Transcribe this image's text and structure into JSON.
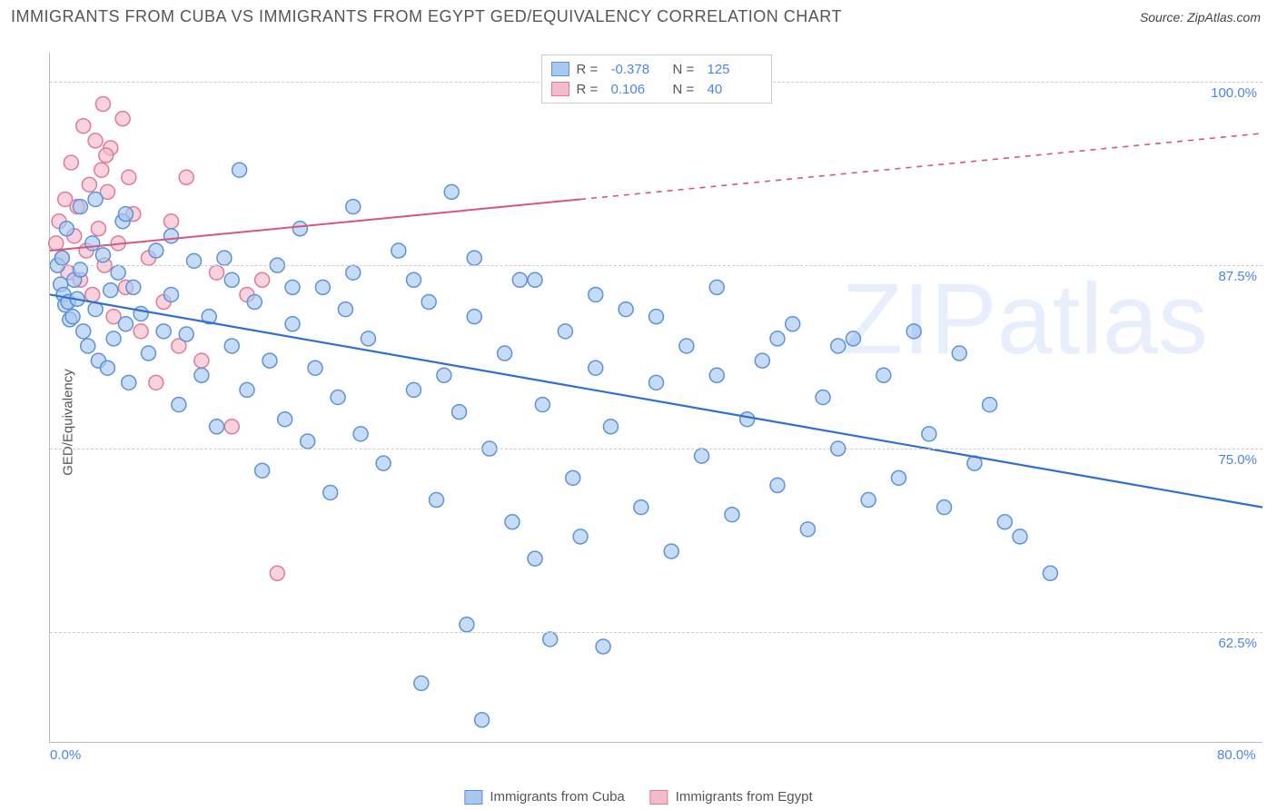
{
  "header": {
    "title": "IMMIGRANTS FROM CUBA VS IMMIGRANTS FROM EGYPT GED/EQUIVALENCY CORRELATION CHART",
    "source": "Source: ZipAtlas.com"
  },
  "chart": {
    "type": "scatter",
    "y_axis_label": "GED/Equivalency",
    "watermark": "ZIPatlas",
    "background_color": "#ffffff",
    "grid_color": "#cccccc",
    "axis_color": "#bbbbbb",
    "text_color": "#555555",
    "value_color": "#4a86e8",
    "xlim": [
      0,
      80
    ],
    "ylim": [
      55,
      102
    ],
    "x_ticks": [
      {
        "v": 0,
        "label": "0.0%"
      },
      {
        "v": 80,
        "label": "80.0%"
      }
    ],
    "y_ticks": [
      {
        "v": 62.5,
        "label": "62.5%"
      },
      {
        "v": 75.0,
        "label": "75.0%"
      },
      {
        "v": 87.5,
        "label": "87.5%"
      },
      {
        "v": 100.0,
        "label": "100.0%"
      }
    ],
    "series": [
      {
        "name": "Immigrants from Cuba",
        "marker_fill": "#a8c8f0",
        "marker_stroke": "#5d93d6",
        "marker_radius": 8,
        "line_color": "#2f6fd0",
        "line_width": 2.2,
        "R": "-0.378",
        "N": "125",
        "trend": {
          "x1": 0,
          "y1": 85.5,
          "x2": 80,
          "y2": 71.0,
          "solid_until": 80
        },
        "points": [
          [
            0.5,
            87.5
          ],
          [
            0.7,
            86.2
          ],
          [
            0.8,
            88.0
          ],
          [
            0.9,
            85.5
          ],
          [
            1.0,
            84.8
          ],
          [
            1.1,
            90.0
          ],
          [
            1.2,
            85.0
          ],
          [
            1.3,
            83.8
          ],
          [
            1.5,
            84.0
          ],
          [
            1.6,
            86.5
          ],
          [
            1.8,
            85.2
          ],
          [
            2.0,
            87.2
          ],
          [
            2.2,
            83.0
          ],
          [
            2.5,
            82.0
          ],
          [
            2.8,
            89.0
          ],
          [
            3.0,
            84.5
          ],
          [
            3.2,
            81.0
          ],
          [
            3.5,
            88.2
          ],
          [
            3.8,
            80.5
          ],
          [
            4.0,
            85.8
          ],
          [
            4.2,
            82.5
          ],
          [
            4.5,
            87.0
          ],
          [
            4.8,
            90.5
          ],
          [
            5.0,
            83.5
          ],
          [
            5.2,
            79.5
          ],
          [
            5.5,
            86.0
          ],
          [
            6.0,
            84.2
          ],
          [
            6.5,
            81.5
          ],
          [
            7.0,
            88.5
          ],
          [
            7.5,
            83.0
          ],
          [
            8.0,
            85.5
          ],
          [
            8.5,
            78.0
          ],
          [
            9.0,
            82.8
          ],
          [
            9.5,
            87.8
          ],
          [
            10.0,
            80.0
          ],
          [
            10.5,
            84.0
          ],
          [
            11.0,
            76.5
          ],
          [
            11.5,
            88.0
          ],
          [
            12.0,
            82.0
          ],
          [
            12.5,
            94.0
          ],
          [
            13.0,
            79.0
          ],
          [
            13.5,
            85.0
          ],
          [
            14.0,
            73.5
          ],
          [
            14.5,
            81.0
          ],
          [
            15.0,
            87.5
          ],
          [
            15.5,
            77.0
          ],
          [
            16.0,
            83.5
          ],
          [
            16.5,
            90.0
          ],
          [
            17.0,
            75.5
          ],
          [
            17.5,
            80.5
          ],
          [
            18.0,
            86.0
          ],
          [
            18.5,
            72.0
          ],
          [
            19.0,
            78.5
          ],
          [
            19.5,
            84.5
          ],
          [
            20.0,
            91.5
          ],
          [
            20.5,
            76.0
          ],
          [
            21.0,
            82.5
          ],
          [
            22.0,
            74.0
          ],
          [
            23.0,
            88.5
          ],
          [
            24.0,
            79.0
          ],
          [
            24.5,
            59.0
          ],
          [
            25.0,
            85.0
          ],
          [
            25.5,
            71.5
          ],
          [
            26.0,
            80.0
          ],
          [
            26.5,
            92.5
          ],
          [
            27.0,
            77.5
          ],
          [
            27.5,
            63.0
          ],
          [
            28.0,
            84.0
          ],
          [
            28.5,
            56.5
          ],
          [
            29.0,
            75.0
          ],
          [
            30.0,
            81.5
          ],
          [
            30.5,
            70.0
          ],
          [
            31.0,
            86.5
          ],
          [
            32.0,
            67.5
          ],
          [
            32.5,
            78.0
          ],
          [
            33.0,
            62.0
          ],
          [
            34.0,
            83.0
          ],
          [
            34.5,
            73.0
          ],
          [
            35.0,
            69.0
          ],
          [
            36.0,
            80.5
          ],
          [
            36.5,
            61.5
          ],
          [
            37.0,
            76.5
          ],
          [
            38.0,
            84.5
          ],
          [
            39.0,
            71.0
          ],
          [
            40.0,
            79.5
          ],
          [
            41.0,
            68.0
          ],
          [
            42.0,
            82.0
          ],
          [
            43.0,
            74.5
          ],
          [
            44.0,
            86.0
          ],
          [
            45.0,
            70.5
          ],
          [
            46.0,
            77.0
          ],
          [
            47.0,
            81.0
          ],
          [
            48.0,
            72.5
          ],
          [
            49.0,
            83.5
          ],
          [
            50.0,
            69.5
          ],
          [
            51.0,
            78.5
          ],
          [
            52.0,
            75.0
          ],
          [
            53.0,
            82.5
          ],
          [
            54.0,
            71.5
          ],
          [
            55.0,
            80.0
          ],
          [
            56.0,
            73.0
          ],
          [
            57.0,
            83.0
          ],
          [
            58.0,
            76.0
          ],
          [
            59.0,
            71.0
          ],
          [
            60.0,
            81.5
          ],
          [
            61.0,
            74.0
          ],
          [
            62.0,
            78.0
          ],
          [
            63.0,
            70.0
          ],
          [
            64.0,
            69.0
          ],
          [
            66.0,
            66.5
          ],
          [
            52.0,
            82.0
          ],
          [
            48.0,
            82.5
          ],
          [
            44.0,
            80.0
          ],
          [
            40.0,
            84.0
          ],
          [
            36.0,
            85.5
          ],
          [
            32.0,
            86.5
          ],
          [
            28.0,
            88.0
          ],
          [
            24.0,
            86.5
          ],
          [
            20.0,
            87.0
          ],
          [
            16.0,
            86.0
          ],
          [
            12.0,
            86.5
          ],
          [
            8.0,
            89.5
          ],
          [
            5.0,
            91.0
          ],
          [
            3.0,
            92.0
          ],
          [
            2.0,
            91.5
          ]
        ]
      },
      {
        "name": "Immigrants from Egypt",
        "marker_fill": "#f4bccb",
        "marker_stroke": "#e17a98",
        "marker_radius": 8,
        "line_color": "#d9567a",
        "line_width": 2.0,
        "R": "0.106",
        "N": "40",
        "trend": {
          "x1": 0,
          "y1": 88.5,
          "x2": 80,
          "y2": 96.5,
          "solid_until": 35
        },
        "points": [
          [
            0.4,
            89.0
          ],
          [
            0.6,
            90.5
          ],
          [
            0.8,
            88.0
          ],
          [
            1.0,
            92.0
          ],
          [
            1.2,
            87.0
          ],
          [
            1.4,
            94.5
          ],
          [
            1.6,
            89.5
          ],
          [
            1.8,
            91.5
          ],
          [
            2.0,
            86.5
          ],
          [
            2.2,
            97.0
          ],
          [
            2.4,
            88.5
          ],
          [
            2.6,
            93.0
          ],
          [
            2.8,
            85.5
          ],
          [
            3.0,
            96.0
          ],
          [
            3.2,
            90.0
          ],
          [
            3.4,
            94.0
          ],
          [
            3.5,
            98.5
          ],
          [
            3.6,
            87.5
          ],
          [
            3.8,
            92.5
          ],
          [
            4.0,
            95.5
          ],
          [
            4.2,
            84.0
          ],
          [
            4.5,
            89.0
          ],
          [
            4.8,
            97.5
          ],
          [
            5.0,
            86.0
          ],
          [
            5.5,
            91.0
          ],
          [
            6.0,
            83.0
          ],
          [
            6.5,
            88.0
          ],
          [
            7.0,
            79.5
          ],
          [
            7.5,
            85.0
          ],
          [
            8.0,
            90.5
          ],
          [
            8.5,
            82.0
          ],
          [
            9.0,
            93.5
          ],
          [
            10.0,
            81.0
          ],
          [
            11.0,
            87.0
          ],
          [
            12.0,
            76.5
          ],
          [
            13.0,
            85.5
          ],
          [
            14.0,
            86.5
          ],
          [
            15.0,
            66.5
          ],
          [
            5.2,
            93.5
          ],
          [
            3.7,
            95.0
          ]
        ]
      }
    ],
    "legend_bottom": [
      {
        "label": "Immigrants from Cuba",
        "fill": "#a8c8f0",
        "stroke": "#5d93d6"
      },
      {
        "label": "Immigrants from Egypt",
        "fill": "#f4bccb",
        "stroke": "#e17a98"
      }
    ]
  }
}
